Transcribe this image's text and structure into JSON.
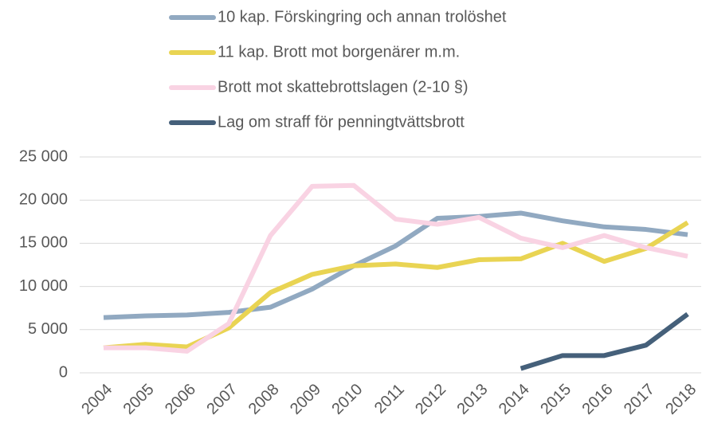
{
  "chart_data": {
    "type": "line",
    "categories": [
      "2004",
      "2005",
      "2006",
      "2007",
      "2008",
      "2009",
      "2010",
      "2011",
      "2012",
      "2013",
      "2014",
      "2015",
      "2016",
      "2017",
      "2018"
    ],
    "series": [
      {
        "name": "10 kap. Förskingring och annan trolöshet",
        "color": "#91a9c1",
        "values": [
          6400,
          6600,
          6700,
          7000,
          7600,
          9700,
          12400,
          14700,
          17900,
          18100,
          18500,
          17600,
          16900,
          16600,
          16000
        ]
      },
      {
        "name": "11 kap. Brott mot borgenärer m.m.",
        "color": "#e9d453",
        "values": [
          2900,
          3300,
          3000,
          5200,
          9300,
          11400,
          12400,
          12600,
          12200,
          13100,
          13200,
          15000,
          12900,
          14400,
          17400
        ]
      },
      {
        "name": "Brott mot skattebrottslagen (2-10 §)",
        "color": "#f9d3e3",
        "values": [
          2900,
          2900,
          2500,
          5700,
          15900,
          21600,
          21700,
          17800,
          17200,
          18000,
          15600,
          14500,
          15900,
          14500,
          13500
        ]
      },
      {
        "name": "Lag om straff för penningtvättsbrott",
        "color": "#45607a",
        "values": [
          null,
          null,
          null,
          null,
          null,
          null,
          null,
          null,
          null,
          null,
          500,
          2000,
          2000,
          3200,
          6800
        ]
      }
    ],
    "ylim": [
      0,
      25000
    ],
    "yticks": [
      0,
      {
        "value": 5000,
        "label": "5 000"
      },
      {
        "value": 10000,
        "label": "10 000"
      },
      {
        "value": 15000,
        "label": "15 000"
      },
      {
        "value": 20000,
        "label": "20 000"
      },
      {
        "value": 25000,
        "label": "25 000"
      }
    ],
    "grid": true,
    "legend": "top"
  }
}
